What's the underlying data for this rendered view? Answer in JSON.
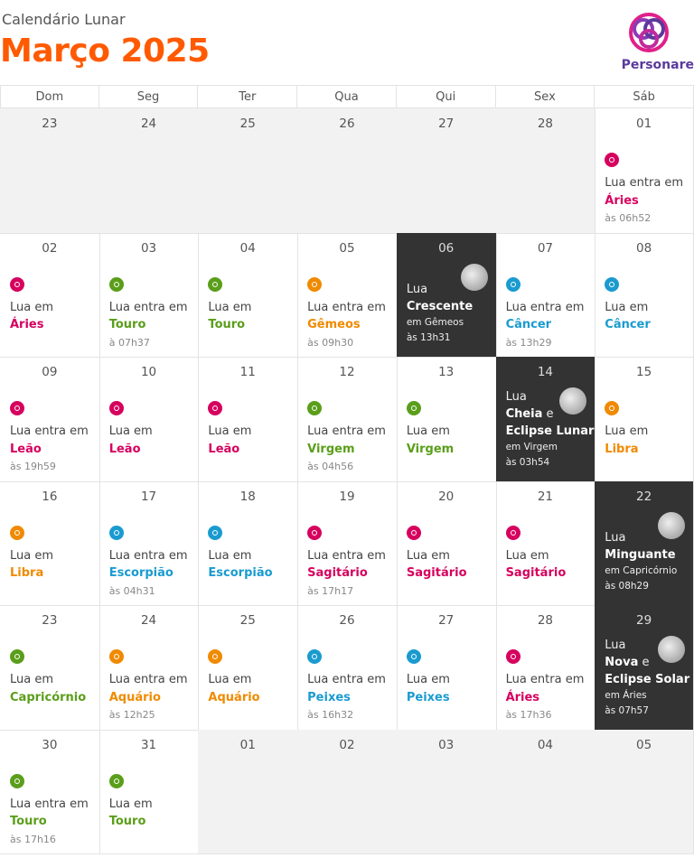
{
  "header": {
    "subtitle": "Calendário Lunar",
    "title": "Março 2025",
    "logo": "Personare"
  },
  "weekdays": [
    "Dom",
    "Seg",
    "Ter",
    "Qua",
    "Qui",
    "Sex",
    "Sáb"
  ],
  "weeks": [
    [
      {
        "day": "23"
      },
      {
        "day": "24"
      },
      {
        "day": "25"
      },
      {
        "day": "26"
      },
      {
        "day": "27"
      },
      {
        "day": "28"
      },
      {
        "day": "01",
        "text": "Lua entra em",
        "sign": "Áries",
        "time": "às 06h52",
        "color": "#d6005e"
      }
    ],
    [
      {
        "day": "02",
        "text": "Lua em",
        "sign": "Áries",
        "color": "#d6005e"
      },
      {
        "day": "03",
        "text": "Lua entra em",
        "sign": "Touro",
        "time": "à 07h37",
        "color": "#5a9e1a"
      },
      {
        "day": "04",
        "text": "Lua em",
        "sign": "Touro",
        "color": "#5a9e1a"
      },
      {
        "day": "05",
        "text": "Lua entra em",
        "sign": "Gêmeos",
        "time": "às 09h30",
        "color": "#f08a00"
      },
      {
        "day": "06",
        "lead": "Lua",
        "phase": "Crescente",
        "sign_line": "em Gêmeos",
        "time": "às 13h31"
      },
      {
        "day": "07",
        "text": "Lua entra em",
        "sign": "Câncer",
        "time": "às 13h29",
        "color": "#1a9bd0"
      },
      {
        "day": "08",
        "text": "Lua em",
        "sign": "Câncer",
        "color": "#1a9bd0"
      }
    ],
    [
      {
        "day": "09",
        "text": "Lua entra em",
        "sign": "Leão",
        "time": "às 19h59",
        "color": "#d6005e"
      },
      {
        "day": "10",
        "text": "Lua em",
        "sign": "Leão",
        "color": "#d6005e"
      },
      {
        "day": "11",
        "text": "Lua em",
        "sign": "Leão",
        "color": "#d6005e"
      },
      {
        "day": "12",
        "text": "Lua entra em",
        "sign": "Virgem",
        "time": "às 04h56",
        "color": "#5a9e1a"
      },
      {
        "day": "13",
        "text": "Lua em",
        "sign": "Virgem",
        "color": "#5a9e1a"
      },
      {
        "day": "14",
        "lead": "Lua",
        "phase": "Cheia",
        "joiner": "e",
        "extra": "Eclipse Lunar",
        "sign_line": "em Virgem",
        "time": "às 03h54"
      },
      {
        "day": "15",
        "text": "Lua em",
        "sign": "Libra",
        "color": "#f08a00"
      }
    ],
    [
      {
        "day": "16",
        "text": "Lua em",
        "sign": "Libra",
        "color": "#f08a00"
      },
      {
        "day": "17",
        "text": "Lua entra em",
        "sign": "Escorpião",
        "time": "às 04h31",
        "color": "#1a9bd0"
      },
      {
        "day": "18",
        "text": "Lua em",
        "sign": "Escorpião",
        "color": "#1a9bd0"
      },
      {
        "day": "19",
        "text": "Lua entra em",
        "sign": "Sagitário",
        "time": "às 17h17",
        "color": "#d6005e"
      },
      {
        "day": "20",
        "text": "Lua em",
        "sign": "Sagitário",
        "color": "#d6005e"
      },
      {
        "day": "21",
        "text": "Lua em",
        "sign": "Sagitário",
        "color": "#d6005e"
      },
      {
        "day": "22",
        "lead": "Lua",
        "phase": "Minguante",
        "sign_line": "em Capricórnio",
        "time": "às 08h29"
      }
    ],
    [
      {
        "day": "23",
        "text": "Lua em",
        "sign": "Capricórnio",
        "color": "#5a9e1a"
      },
      {
        "day": "24",
        "text": "Lua entra em",
        "sign": "Aquário",
        "time": "às 12h25",
        "color": "#f08a00"
      },
      {
        "day": "25",
        "text": "Lua em",
        "sign": "Aquário",
        "color": "#f08a00"
      },
      {
        "day": "26",
        "text": "Lua entra em",
        "sign": "Peixes",
        "time": "às 16h32",
        "color": "#1a9bd0"
      },
      {
        "day": "27",
        "text": "Lua em",
        "sign": "Peixes",
        "color": "#1a9bd0"
      },
      {
        "day": "28",
        "text": "Lua entra em",
        "sign": "Áries",
        "time": "às 17h36",
        "color": "#d6005e"
      },
      {
        "day": "29",
        "lead": "Lua",
        "phase": "Nova",
        "joiner": "e",
        "extra": "Eclipse Solar",
        "sign_line": "em Áries",
        "time": "às 07h57"
      }
    ],
    [
      {
        "day": "30",
        "text": "Lua entra em",
        "sign": "Touro",
        "time": "às 17h16",
        "color": "#5a9e1a"
      },
      {
        "day": "31",
        "text": "Lua em",
        "sign": "Touro",
        "color": "#5a9e1a"
      },
      {
        "day": "01"
      },
      {
        "day": "02"
      },
      {
        "day": "03"
      },
      {
        "day": "04"
      },
      {
        "day": "05"
      }
    ]
  ]
}
